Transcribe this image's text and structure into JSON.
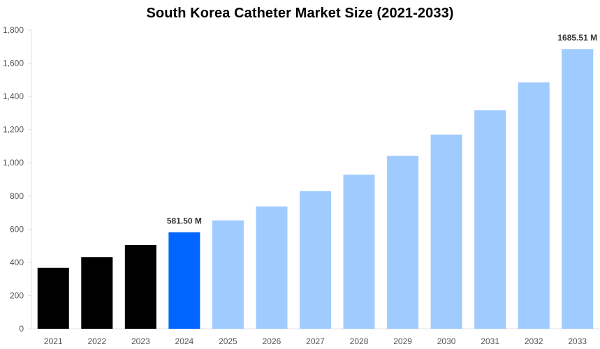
{
  "chart_data": {
    "type": "bar",
    "title": "South Korea Catheter Market Size (2021-2033)",
    "xlabel": "",
    "ylabel": "",
    "categories": [
      "2021",
      "2022",
      "2023",
      "2024",
      "2025",
      "2026",
      "2027",
      "2028",
      "2029",
      "2030",
      "2031",
      "2032",
      "2033"
    ],
    "values": [
      367,
      432,
      505,
      581.5,
      653,
      737,
      829,
      928,
      1042,
      1170,
      1316,
      1484,
      1685.51
    ],
    "bar_colors": [
      "#000000",
      "#000000",
      "#000000",
      "#0066ff",
      "#a0cbff",
      "#a0cbff",
      "#a0cbff",
      "#a0cbff",
      "#a0cbff",
      "#a0cbff",
      "#a0cbff",
      "#a0cbff",
      "#a0cbff"
    ],
    "data_labels": [
      {
        "category": "2024",
        "text": "581.50 M"
      },
      {
        "category": "2033",
        "text": "1685.51 M"
      }
    ],
    "yticks": [
      0,
      200,
      400,
      600,
      800,
      1000,
      1200,
      1400,
      1600,
      1800
    ],
    "ytick_labels": [
      "0",
      "200",
      "400",
      "600",
      "800",
      "1,000",
      "1,200",
      "1,400",
      "1,600",
      "1,800"
    ],
    "ylim": [
      0,
      1800
    ],
    "grid": false,
    "axis_color": "#e0e0e0"
  }
}
